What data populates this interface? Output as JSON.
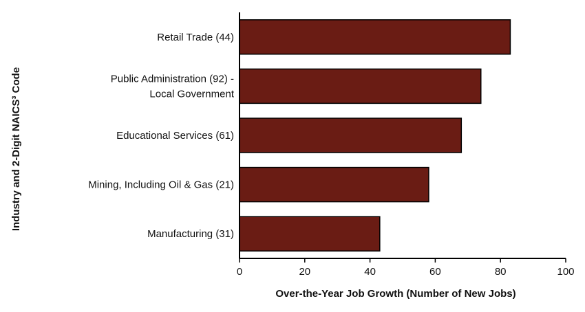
{
  "chart_data": {
    "type": "bar",
    "orientation": "horizontal",
    "categories": [
      [
        "Retail Trade (44)"
      ],
      [
        "Public Administration (92) -",
        "Local Government"
      ],
      [
        "Educational Services (61)"
      ],
      [
        "Mining, Including Oil & Gas (21)"
      ],
      [
        "Manufacturing (31)"
      ]
    ],
    "values": [
      83,
      74,
      68,
      58,
      43
    ],
    "xlabel": "Over-the-Year Job Growth (Number of New Jobs)",
    "ylabel": "Industry and 2-Digit NAICS³ Code",
    "xlim": [
      0,
      100
    ],
    "xticks": [
      0,
      20,
      40,
      60,
      80,
      100
    ],
    "grid": false,
    "colors": {
      "bar": "#6a1c14",
      "axis": "#000000"
    }
  }
}
